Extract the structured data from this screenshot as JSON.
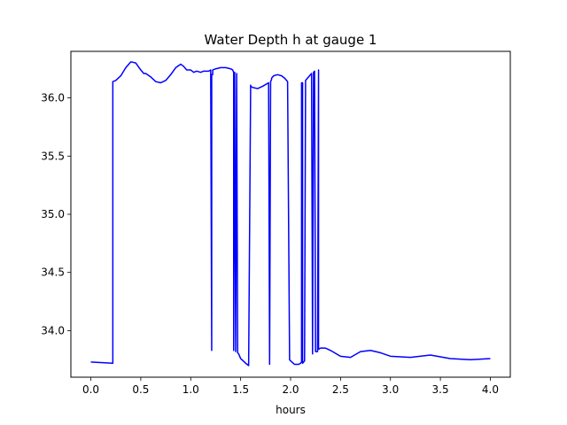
{
  "chart_data": {
    "type": "line",
    "title": "Water Depth h at gauge 1",
    "xlabel": "hours",
    "ylabel": "",
    "xlim": [
      -0.2,
      4.2
    ],
    "ylim": [
      33.6,
      36.4
    ],
    "xticks": [
      0.0,
      0.5,
      1.0,
      1.5,
      2.0,
      2.5,
      3.0,
      3.5,
      4.0
    ],
    "xtick_labels": [
      "0.0",
      "0.5",
      "1.0",
      "1.5",
      "2.0",
      "2.5",
      "3.0",
      "3.5",
      "4.0"
    ],
    "yticks": [
      34.0,
      34.5,
      35.0,
      35.5,
      36.0
    ],
    "ytick_labels": [
      "34.0",
      "34.5",
      "35.0",
      "35.5",
      "36.0"
    ],
    "grid": false,
    "series": [
      {
        "color": "#0000ff",
        "x": [
          0.0,
          0.22,
          0.22,
          0.25,
          0.3,
          0.35,
          0.4,
          0.45,
          0.5,
          0.53,
          0.55,
          0.6,
          0.65,
          0.7,
          0.75,
          0.8,
          0.85,
          0.9,
          0.93,
          0.96,
          1.0,
          1.03,
          1.06,
          1.1,
          1.13,
          1.18,
          1.2,
          1.21,
          1.21,
          1.22,
          1.22,
          1.25,
          1.3,
          1.35,
          1.4,
          1.42,
          1.43,
          1.43,
          1.44,
          1.45,
          1.46,
          1.47,
          1.48,
          1.48,
          1.5,
          1.55,
          1.58,
          1.6,
          1.6,
          1.62,
          1.67,
          1.72,
          1.78,
          1.79,
          1.79,
          1.8,
          1.8,
          1.81,
          1.81,
          1.83,
          1.87,
          1.91,
          1.94,
          1.97,
          1.99,
          2.0,
          2.04,
          2.08,
          2.1,
          2.11,
          2.11,
          2.12,
          2.12,
          2.13,
          2.14,
          2.15,
          2.18,
          2.21,
          2.22,
          2.22,
          2.23,
          2.24,
          2.25,
          2.27,
          2.28,
          2.28,
          2.3,
          2.35,
          2.4,
          2.5,
          2.6,
          2.7,
          2.8,
          2.9,
          3.0,
          3.2,
          3.4,
          3.6,
          3.8,
          4.0
        ],
        "y": [
          33.73,
          33.72,
          36.14,
          36.15,
          36.19,
          36.26,
          36.31,
          36.3,
          36.24,
          36.21,
          36.21,
          36.18,
          36.14,
          36.13,
          36.15,
          36.2,
          36.26,
          36.29,
          36.27,
          36.24,
          36.24,
          36.22,
          36.23,
          36.22,
          36.23,
          36.23,
          36.24,
          33.83,
          36.2,
          36.2,
          36.24,
          36.25,
          36.26,
          36.26,
          36.25,
          36.24,
          36.22,
          33.83,
          36.22,
          33.82,
          36.21,
          33.81,
          33.8,
          33.8,
          33.76,
          33.72,
          33.7,
          36.11,
          36.1,
          36.09,
          36.08,
          36.1,
          36.13,
          33.71,
          33.72,
          36.13,
          36.14,
          36.16,
          36.17,
          36.19,
          36.2,
          36.19,
          36.17,
          36.14,
          33.75,
          33.74,
          33.71,
          33.71,
          33.72,
          33.73,
          36.13,
          36.13,
          33.72,
          33.73,
          33.74,
          36.15,
          36.18,
          36.21,
          33.8,
          33.8,
          36.22,
          36.23,
          33.82,
          33.82,
          36.24,
          33.84,
          33.85,
          33.85,
          33.83,
          33.78,
          33.77,
          33.82,
          33.83,
          33.81,
          33.78,
          33.77,
          33.79,
          33.76,
          33.75,
          33.76
        ]
      }
    ]
  }
}
